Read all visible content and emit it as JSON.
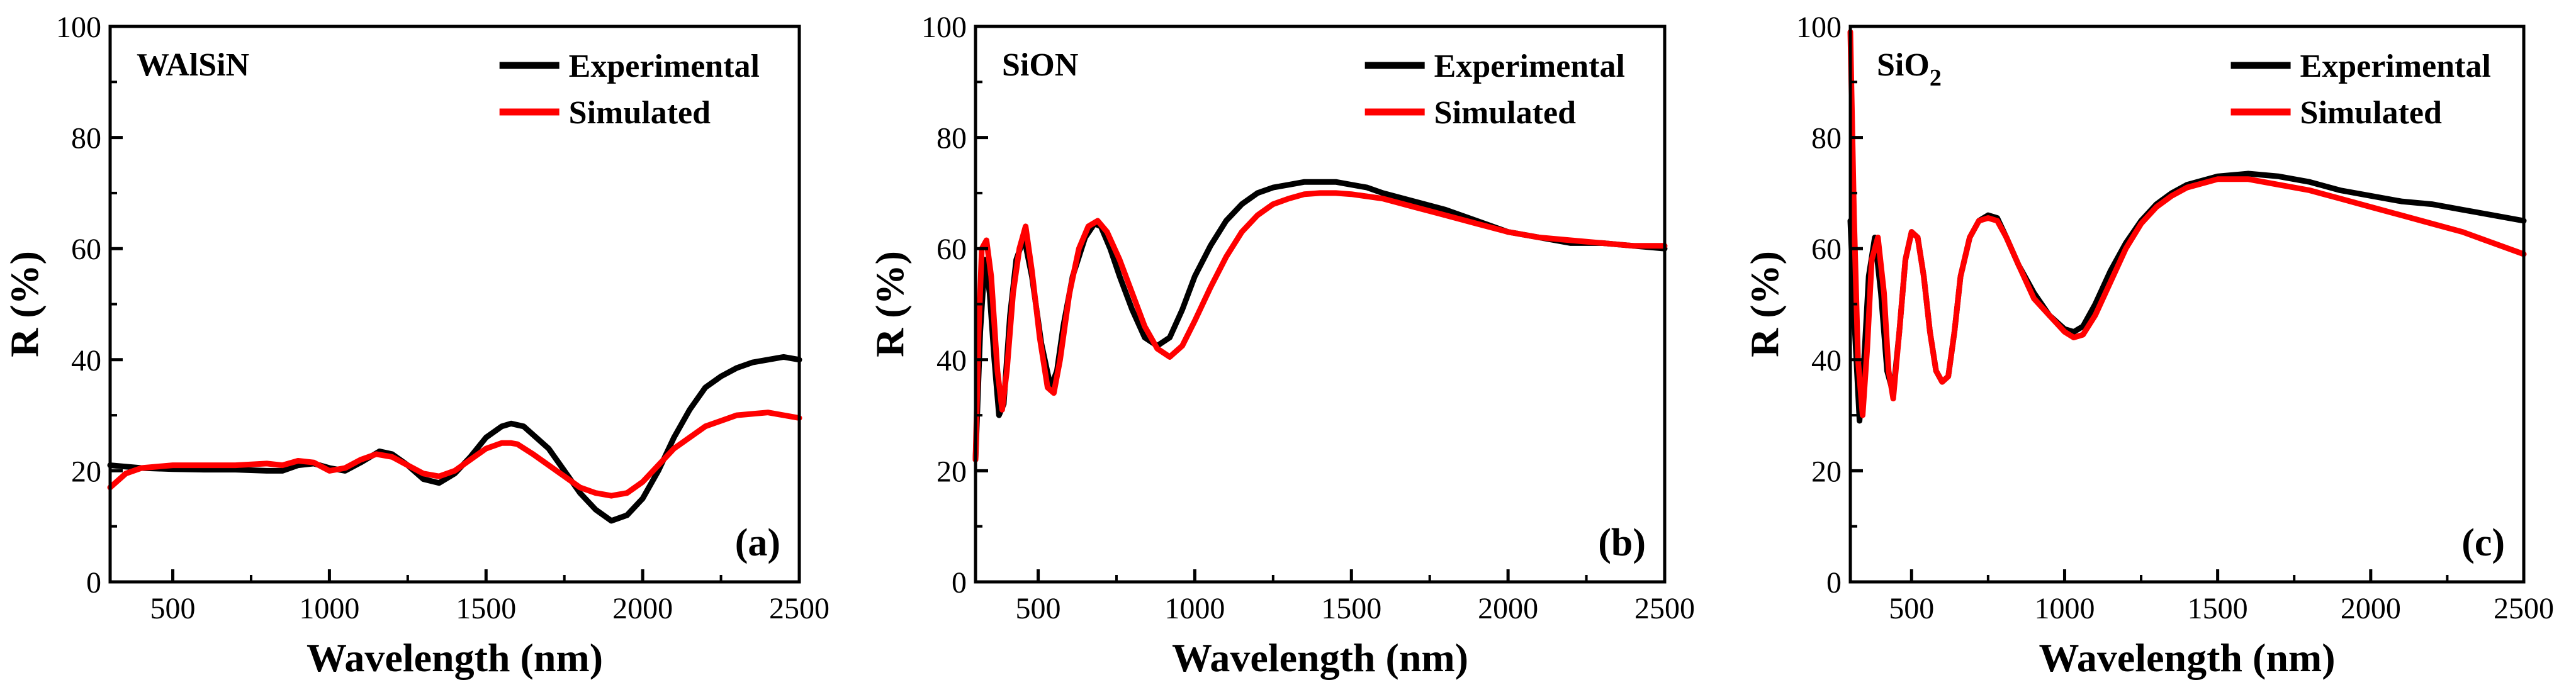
{
  "chart_data": [
    {
      "type": "line",
      "panel_label": "(a)",
      "sample": "WAlSiN",
      "sample_sub": "",
      "xlabel": "Wavelength (nm)",
      "ylabel": "R (%)",
      "xlim": [
        300,
        2500
      ],
      "ylim": [
        0,
        100
      ],
      "xticks": [
        500,
        1000,
        1500,
        2000,
        2500
      ],
      "yticks": [
        0,
        20,
        40,
        60,
        80,
        100
      ],
      "legend": [
        "Experimental",
        "Simulated"
      ],
      "series": [
        {
          "name": "Experimental",
          "color": "#000000",
          "x": [
            300,
            400,
            500,
            600,
            700,
            800,
            850,
            900,
            950,
            1000,
            1050,
            1100,
            1160,
            1200,
            1250,
            1300,
            1350,
            1400,
            1450,
            1500,
            1550,
            1580,
            1620,
            1700,
            1750,
            1800,
            1850,
            1900,
            1950,
            2000,
            2050,
            2100,
            2150,
            2200,
            2250,
            2300,
            2350,
            2400,
            2450,
            2500
          ],
          "y": [
            21,
            20.5,
            20.3,
            20.2,
            20.2,
            20,
            20,
            21,
            21.3,
            20.5,
            20,
            21.5,
            23.5,
            23,
            21,
            18.5,
            17.8,
            19.5,
            22.5,
            26,
            28,
            28.5,
            28,
            24,
            20,
            16,
            13,
            11,
            12,
            15,
            20,
            26,
            31,
            35,
            37,
            38.5,
            39.5,
            40,
            40.5,
            40
          ]
        },
        {
          "name": "Simulated",
          "color": "#ff0000",
          "x": [
            300,
            350,
            400,
            500,
            600,
            700,
            800,
            850,
            900,
            950,
            1000,
            1050,
            1100,
            1150,
            1200,
            1250,
            1300,
            1350,
            1400,
            1450,
            1500,
            1550,
            1580,
            1600,
            1650,
            1700,
            1750,
            1800,
            1850,
            1900,
            1950,
            2000,
            2050,
            2100,
            2200,
            2300,
            2400,
            2500
          ],
          "y": [
            17,
            19.5,
            20.5,
            21,
            21,
            21,
            21.3,
            21,
            21.8,
            21.5,
            20,
            20.5,
            22,
            23,
            22.5,
            21,
            19.5,
            19,
            20,
            22,
            24,
            25,
            25,
            24.8,
            23,
            21,
            19,
            17,
            16,
            15.5,
            16,
            18,
            21,
            24,
            28,
            30,
            30.5,
            29.5
          ]
        }
      ]
    },
    {
      "type": "line",
      "panel_label": "(b)",
      "sample": "SiON",
      "sample_sub": "",
      "xlabel": "Wavelength (nm)",
      "ylabel": "R (%)",
      "xlim": [
        300,
        2500
      ],
      "ylim": [
        0,
        100
      ],
      "xticks": [
        500,
        1000,
        1500,
        2000,
        2500
      ],
      "yticks": [
        0,
        20,
        40,
        60,
        80,
        100
      ],
      "legend": [
        "Experimental",
        "Simulated"
      ],
      "series": [
        {
          "name": "Experimental",
          "color": "#000000",
          "x": [
            300,
            315,
            330,
            345,
            360,
            375,
            390,
            410,
            430,
            455,
            480,
            510,
            540,
            560,
            580,
            610,
            650,
            680,
            700,
            730,
            760,
            800,
            840,
            880,
            920,
            960,
            1000,
            1050,
            1100,
            1150,
            1200,
            1250,
            1300,
            1350,
            1400,
            1450,
            1500,
            1550,
            1600,
            1700,
            1800,
            1900,
            2000,
            2100,
            2200,
            2300,
            2400,
            2500
          ],
          "y": [
            22,
            45,
            58,
            52,
            40,
            30,
            32,
            48,
            58,
            62,
            55,
            43,
            35,
            38,
            46,
            55,
            62,
            64.5,
            64,
            60,
            55,
            49,
            44,
            42.5,
            44,
            49,
            55,
            60.5,
            65,
            68,
            70,
            71,
            71.5,
            72,
            72,
            72,
            71.5,
            71,
            70,
            68.5,
            67,
            65,
            63,
            62,
            61,
            61,
            60.5,
            60
          ]
        },
        {
          "name": "Simulated",
          "color": "#ff0000",
          "x": [
            300,
            310,
            320,
            335,
            350,
            370,
            385,
            400,
            420,
            440,
            460,
            480,
            505,
            530,
            550,
            570,
            600,
            630,
            660,
            690,
            720,
            760,
            800,
            840,
            880,
            920,
            960,
            1000,
            1050,
            1100,
            1150,
            1200,
            1250,
            1300,
            1350,
            1400,
            1450,
            1500,
            1600,
            1700,
            1800,
            1900,
            2000,
            2100,
            2200,
            2300,
            2400,
            2500
          ],
          "y": [
            22,
            45,
            60,
            61.5,
            55,
            38,
            31,
            38,
            52,
            60,
            64,
            56,
            44,
            35,
            34,
            40,
            52,
            60,
            64,
            65,
            63,
            58,
            52,
            46,
            42,
            40.5,
            42.5,
            47,
            53,
            58.5,
            63,
            66,
            68,
            69,
            69.8,
            70,
            70,
            69.8,
            69,
            67.5,
            66,
            64.5,
            63,
            62,
            61.5,
            61,
            60.5,
            60.5
          ]
        }
      ]
    },
    {
      "type": "line",
      "panel_label": "(c)",
      "sample": "SiO",
      "sample_sub": "2",
      "xlabel": "Wavelength (nm)",
      "ylabel": "R (%)",
      "xlim": [
        300,
        2500
      ],
      "ylim": [
        0,
        100
      ],
      "xticks": [
        500,
        1000,
        1500,
        2000,
        2500
      ],
      "yticks": [
        0,
        20,
        40,
        60,
        80,
        100
      ],
      "legend": [
        "Experimental",
        "Simulated"
      ],
      "series": [
        {
          "name": "Experimental",
          "color": "#000000",
          "x": [
            300,
            315,
            330,
            345,
            360,
            380,
            400,
            420,
            440,
            460,
            480,
            500,
            520,
            540,
            560,
            580,
            600,
            620,
            640,
            660,
            690,
            720,
            750,
            780,
            810,
            850,
            900,
            950,
            1000,
            1030,
            1060,
            1100,
            1150,
            1200,
            1250,
            1300,
            1350,
            1400,
            1500,
            1600,
            1700,
            1800,
            1900,
            2000,
            2100,
            2200,
            2300,
            2400,
            2500
          ],
          "y": [
            65,
            45,
            29,
            40,
            55,
            62,
            52,
            38,
            34,
            45,
            58,
            63,
            62,
            55,
            45,
            38,
            36,
            37,
            45,
            55,
            62,
            65,
            66,
            65.5,
            62,
            57,
            52,
            48,
            45.5,
            45,
            46,
            50,
            56,
            61,
            65,
            68,
            70,
            71.5,
            73,
            73.5,
            73,
            72,
            70.5,
            69.5,
            68.5,
            68,
            67,
            66,
            65
          ]
        },
        {
          "name": "Simulated",
          "color": "#ff0000",
          "x": [
            300,
            312,
            325,
            340,
            355,
            370,
            390,
            410,
            425,
            440,
            460,
            480,
            500,
            520,
            540,
            560,
            580,
            600,
            620,
            640,
            660,
            690,
            720,
            750,
            780,
            810,
            850,
            900,
            950,
            1000,
            1030,
            1060,
            1100,
            1150,
            1200,
            1250,
            1300,
            1350,
            1400,
            1500,
            1600,
            1700,
            1800,
            1900,
            2000,
            2100,
            2200,
            2300,
            2400,
            2500
          ],
          "y": [
            99,
            66,
            40,
            30,
            42,
            58,
            62,
            52,
            38,
            33,
            45,
            58,
            63,
            62,
            55,
            45,
            38,
            36,
            37,
            45,
            55,
            62,
            65,
            65.5,
            65,
            62,
            57,
            51,
            48,
            45,
            44,
            44.5,
            48,
            54,
            60,
            64.5,
            67.5,
            69.5,
            71,
            72.5,
            72.5,
            71.5,
            70.5,
            69,
            67.5,
            66,
            64.5,
            63,
            61,
            59
          ]
        }
      ]
    }
  ]
}
